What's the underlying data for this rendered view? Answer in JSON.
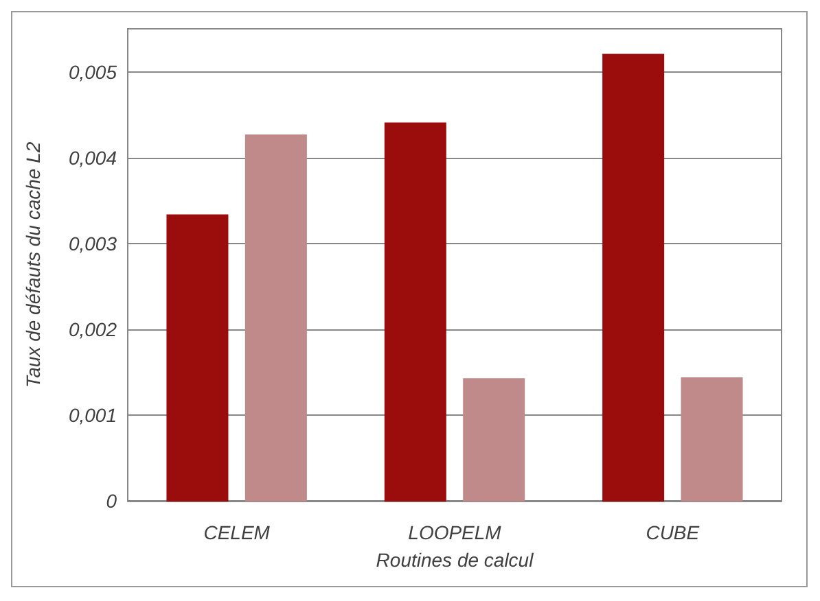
{
  "chart_data": {
    "type": "bar",
    "xlabel": "Routines de calcul",
    "ylabel": "Taux de défauts du cache L2",
    "categories": [
      "CELEM",
      "LOOPELM",
      "CUBE"
    ],
    "series": [
      {
        "color": "#9b0c0c",
        "values": [
          0.00333,
          0.0044,
          0.0052
        ]
      },
      {
        "color": "#c08a8a",
        "values": [
          0.00426,
          0.00142,
          0.00143
        ]
      }
    ],
    "ylim": [
      0,
      0.0055
    ],
    "yticks": [
      {
        "value": 0,
        "label": "0"
      },
      {
        "value": 0.001,
        "label": "0,001"
      },
      {
        "value": 0.002,
        "label": "0,002"
      },
      {
        "value": 0.003,
        "label": "0,003"
      },
      {
        "value": 0.004,
        "label": "0,004"
      },
      {
        "value": 0.005,
        "label": "0,005"
      }
    ],
    "grid": "y"
  }
}
